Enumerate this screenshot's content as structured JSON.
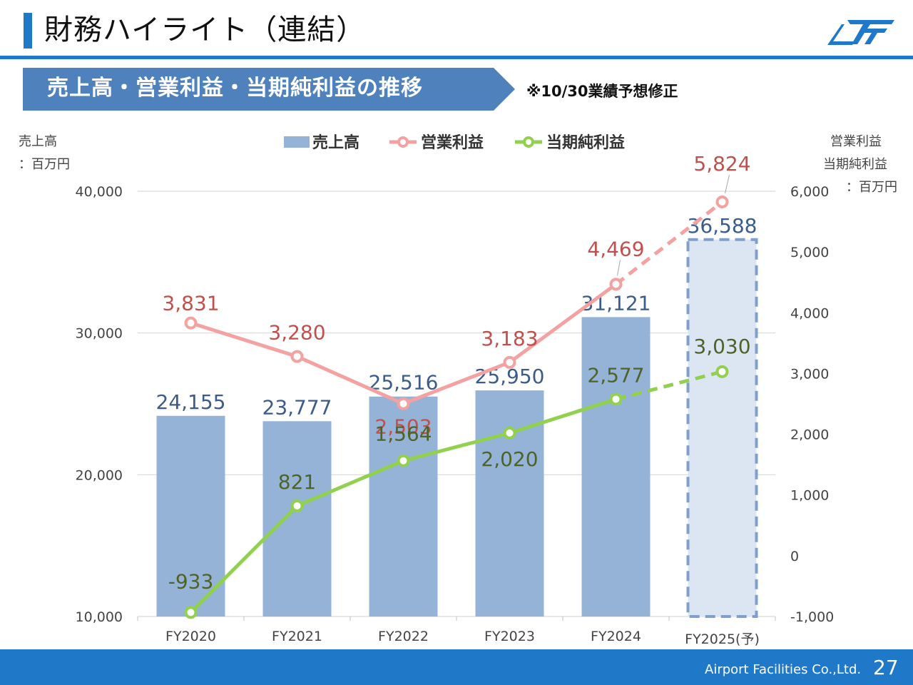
{
  "header": {
    "title": "財務ハイライト（連結）"
  },
  "section": {
    "banner": "売上高・営業利益・当期純利益の推移",
    "note": "※10/30業績予想修正"
  },
  "units": {
    "left_line1": "売上高",
    "left_line2": "：百万円",
    "right_line1": "営業利益",
    "right_line2": "当期純利益",
    "right_line3": "：百万円"
  },
  "chart_data": {
    "type": "bar+line",
    "categories": [
      "FY2020",
      "FY2021",
      "FY2022",
      "FY2023",
      "FY2024",
      "FY2025(予)"
    ],
    "left_axis": {
      "ylim": [
        10000,
        40000
      ],
      "ticks": [
        10000,
        20000,
        30000,
        40000
      ],
      "tick_labels": [
        "10,000",
        "20,000",
        "30,000",
        "40,000"
      ]
    },
    "right_axis": {
      "ylim": [
        -1000,
        6000
      ],
      "ticks": [
        -1000,
        0,
        1000,
        2000,
        3000,
        4000,
        5000,
        6000
      ],
      "tick_labels": [
        "-1,000",
        "0",
        "1,000",
        "2,000",
        "3,000",
        "4,000",
        "5,000",
        "6,000"
      ]
    },
    "series": [
      {
        "name": "売上高",
        "kind": "bar",
        "axis": "left",
        "values": [
          24155,
          23777,
          25516,
          25950,
          31121,
          36588
        ],
        "labels": [
          "24,155",
          "23,777",
          "25,516",
          "25,950",
          "31,121",
          "36,588"
        ],
        "color": "#95b3d7",
        "forecast_color": "#dce6f2"
      },
      {
        "name": "営業利益",
        "kind": "line",
        "axis": "right",
        "values": [
          3831,
          3280,
          2503,
          3183,
          4469,
          5824
        ],
        "labels": [
          "3,831",
          "3,280",
          "2,503",
          "3,183",
          "4,469",
          "5,824"
        ],
        "color": "#f4a1a1",
        "label_color": "#c0504d"
      },
      {
        "name": "当期純利益",
        "kind": "line",
        "axis": "right",
        "values": [
          -933,
          821,
          1564,
          2020,
          2577,
          3030
        ],
        "labels": [
          "-933",
          "821",
          "1,564",
          "2,020",
          "2,577",
          "3,030"
        ],
        "color": "#92d050",
        "label_color": "#4f6228"
      }
    ],
    "forecast_index": 5,
    "legend": "top-center"
  },
  "footer": {
    "company": "Airport Facilities Co.,Ltd.",
    "page": "27"
  }
}
